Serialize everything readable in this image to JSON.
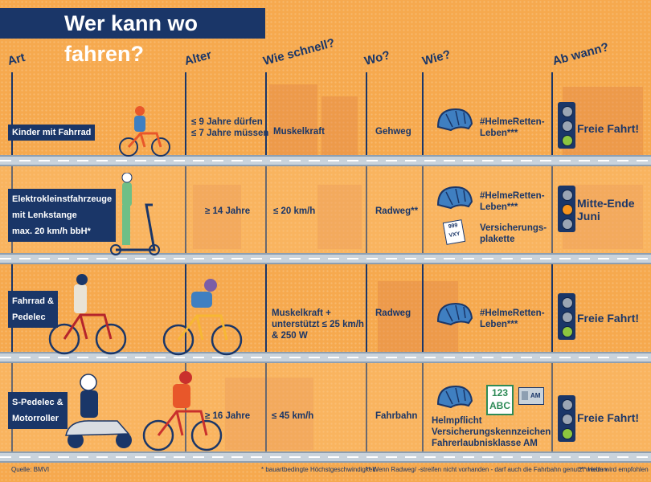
{
  "title": "Wer kann wo fahren?",
  "headers": [
    "Art",
    "Alter",
    "Wie schnell?",
    "Wo?",
    "Wie?",
    "Ab wann?"
  ],
  "rows": [
    {
      "art": "Kinder mit Fahrrad",
      "alter": "≤ 9 Jahre dürfen\n≤ 7 Jahre müssen",
      "speed": "Muskelkraft",
      "wo": "Gehweg",
      "wie": "#HelmeRetten-\nLeben***",
      "extra": "",
      "ab": "Freie Fahrt!"
    },
    {
      "art": "Elektrokleinstfahrzeuge\nmit Lenkstange\nmax. 20 km/h bbH*",
      "alter": "≥ 14 Jahre",
      "speed": "≤ 20 km/h",
      "wo": "Radweg**",
      "wie": "#HelmeRetten-\nLeben***",
      "extra": "Versicherungs-\nplakette",
      "ab": "Mitte-Ende\nJuni"
    },
    {
      "art": "Fahrrad &\nPedelec",
      "alter": "",
      "speed": "Muskelkraft +\nunterstützt ≤ 25 km/h\n& 250 W",
      "wo": "Radweg",
      "wie": "#HelmeRetten-\nLeben***",
      "extra": "",
      "ab": "Freie Fahrt!"
    },
    {
      "art": "S-Pedelec &\nMotorroller",
      "alter": "≥ 16 Jahre",
      "speed": "≤ 45 km/h",
      "wo": "Fahrbahn",
      "wie": "Helmpflicht\nVersicherungskennzeichen\nFahrerlaubnisklasse AM",
      "extra": "",
      "ab": "Freie Fahrt!"
    }
  ],
  "badges": {
    "plate_number": "999",
    "plate_letters": "VXY",
    "sign_number": "123",
    "sign_letters": "ABC",
    "licence_class": "AM"
  },
  "footer": {
    "source": "Quelle: BMVI",
    "note1": "* bauartbedingte Höchstgeschwindigkeit",
    "note2": "** Wenn Radweg/ -streifen nicht vorhanden - darf auch die Fahrbahn genutzt werden",
    "note3": "*** Helm wird empfohlen"
  },
  "colors": {
    "navy": "#1a3668",
    "orange": "#f6a94e",
    "green": "#8cc63f",
    "amber": "#f7941d",
    "helmet": "#3f7fc1"
  }
}
